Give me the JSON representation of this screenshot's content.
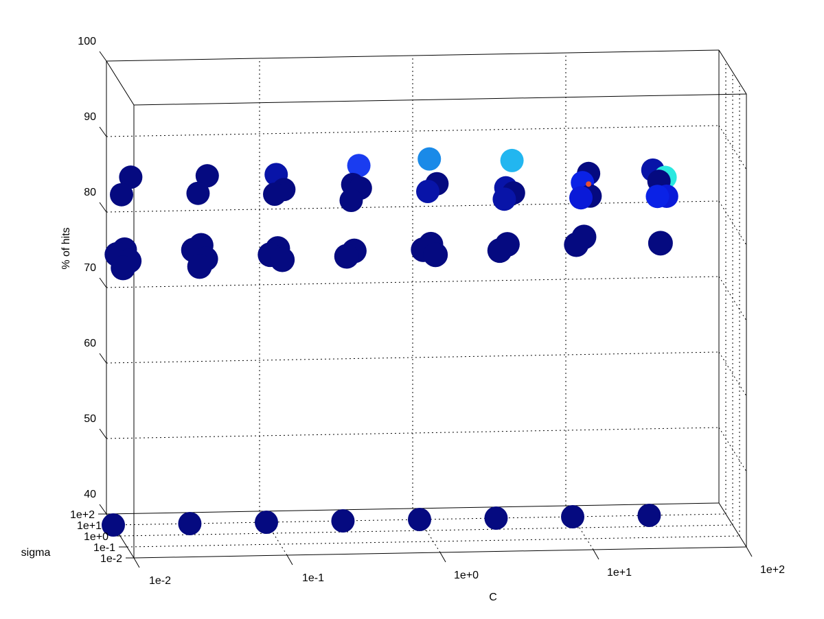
{
  "chart_data": {
    "type": "scatter",
    "view": "3d",
    "title": "",
    "xlabel": "C",
    "ylabel": "sigma",
    "zlabel": "% of hits",
    "x_scale": "log",
    "y_scale": "log",
    "x_ticks": [
      "1e-2",
      "1e-1",
      "1e+0",
      "1e+1",
      "1e+2"
    ],
    "y_ticks": [
      "1e-2",
      "1e-1",
      "1e+0",
      "1e+1",
      "1e+2"
    ],
    "z_ticks": [
      "40",
      "50",
      "60",
      "70",
      "80",
      "90",
      "100"
    ],
    "xlim": [
      0.01,
      100
    ],
    "ylim": [
      0.01,
      100
    ],
    "zlim": [
      40,
      100
    ],
    "grid": true,
    "colors": {
      "navy": "#050a80",
      "dark_blue": "#0814a8",
      "medium_blue": "#0a1ad8",
      "blue": "#1a3cf0",
      "royal_blue": "#0a22e6",
      "azure": "#1a8ae8",
      "sky_blue": "#22b6f0",
      "cyan": "#2ae8e0",
      "orange_red": "#e85030"
    },
    "points_floor": [
      {
        "C": 0.01,
        "sigma": 10,
        "hits": 40,
        "color": "navy"
      },
      {
        "C": 0.0316,
        "sigma": 10,
        "hits": 40,
        "color": "navy"
      },
      {
        "C": 0.1,
        "sigma": 10,
        "hits": 40,
        "color": "navy"
      },
      {
        "C": 0.316,
        "sigma": 10,
        "hits": 40,
        "color": "navy"
      },
      {
        "C": 1,
        "sigma": 10,
        "hits": 40,
        "color": "navy"
      },
      {
        "C": 3.16,
        "sigma": 10,
        "hits": 40,
        "color": "navy"
      },
      {
        "C": 10,
        "sigma": 10,
        "hits": 40,
        "color": "navy"
      },
      {
        "C": 31.6,
        "sigma": 10,
        "hits": 40,
        "color": "navy"
      }
    ],
    "points_upper": [
      {
        "C": 0.01,
        "hits": 87.8,
        "color": "navy"
      },
      {
        "C": 0.01,
        "hits": 85.5,
        "color": "navy"
      },
      {
        "C": 0.0316,
        "hits": 87.8,
        "color": "navy"
      },
      {
        "C": 0.0316,
        "hits": 85.5,
        "color": "navy"
      },
      {
        "C": 0.1,
        "hits": 87.8,
        "color": "dark_blue"
      },
      {
        "C": 0.1,
        "hits": 85.8,
        "color": "navy"
      },
      {
        "C": 0.1,
        "hits": 85.2,
        "color": "navy"
      },
      {
        "C": 0.316,
        "hits": 88.8,
        "color": "blue"
      },
      {
        "C": 0.316,
        "hits": 86.3,
        "color": "navy"
      },
      {
        "C": 0.316,
        "hits": 85.8,
        "color": "navy"
      },
      {
        "C": 0.316,
        "hits": 84.2,
        "color": "navy"
      },
      {
        "C": 1,
        "hits": 89.5,
        "color": "azure"
      },
      {
        "C": 1,
        "hits": 86.2,
        "color": "navy"
      },
      {
        "C": 1,
        "hits": 85.2,
        "color": "dark_blue"
      },
      {
        "C": 3.16,
        "hits": 89.1,
        "color": "sky_blue"
      },
      {
        "C": 3.16,
        "hits": 85.5,
        "color": "dark_blue"
      },
      {
        "C": 3.16,
        "hits": 84.8,
        "color": "navy"
      },
      {
        "C": 3.16,
        "hits": 84.0,
        "color": "dark_blue"
      },
      {
        "C": 10,
        "hits": 87.2,
        "color": "navy"
      },
      {
        "C": 10,
        "hits": 86.0,
        "color": "royal_blue"
      },
      {
        "C": 10,
        "hits": 84.2,
        "color": "navy"
      },
      {
        "C": 10,
        "hits": 84.0,
        "color": "medium_blue"
      },
      {
        "C": 31.6,
        "hits": 87.5,
        "color": "dark_blue"
      },
      {
        "C": 31.6,
        "hits": 86.5,
        "color": "cyan"
      },
      {
        "C": 31.6,
        "hits": 86.0,
        "color": "navy"
      },
      {
        "C": 31.6,
        "hits": 84.0,
        "color": "medium_blue"
      },
      {
        "C": 31.6,
        "hits": 84.0,
        "color": "royal_blue"
      }
    ],
    "points_lower": [
      {
        "C": 0.01,
        "hits": 78.2,
        "color": "navy"
      },
      {
        "C": 0.01,
        "hits": 77.6,
        "color": "navy"
      },
      {
        "C": 0.01,
        "hits": 76.7,
        "color": "navy"
      },
      {
        "C": 0.01,
        "hits": 75.8,
        "color": "navy"
      },
      {
        "C": 0.0316,
        "hits": 78.6,
        "color": "navy"
      },
      {
        "C": 0.0316,
        "hits": 78.0,
        "color": "navy"
      },
      {
        "C": 0.0316,
        "hits": 76.8,
        "color": "navy"
      },
      {
        "C": 0.0316,
        "hits": 75.8,
        "color": "navy"
      },
      {
        "C": 0.1,
        "hits": 78.0,
        "color": "navy"
      },
      {
        "C": 0.1,
        "hits": 77.2,
        "color": "navy"
      },
      {
        "C": 0.1,
        "hits": 76.5,
        "color": "navy"
      },
      {
        "C": 0.316,
        "hits": 77.5,
        "color": "navy"
      },
      {
        "C": 0.316,
        "hits": 76.8,
        "color": "navy"
      },
      {
        "C": 1,
        "hits": 78.2,
        "color": "navy"
      },
      {
        "C": 1,
        "hits": 77.5,
        "color": "navy"
      },
      {
        "C": 1,
        "hits": 76.8,
        "color": "navy"
      },
      {
        "C": 3.16,
        "hits": 78.0,
        "color": "navy"
      },
      {
        "C": 3.16,
        "hits": 77.2,
        "color": "navy"
      },
      {
        "C": 10,
        "hits": 78.8,
        "color": "navy"
      },
      {
        "C": 10,
        "hits": 77.8,
        "color": "navy"
      },
      {
        "C": 31.6,
        "hits": 77.8,
        "color": "navy"
      }
    ],
    "best_point": {
      "C": 10,
      "hits": 85.8,
      "color": "orange_red"
    }
  }
}
